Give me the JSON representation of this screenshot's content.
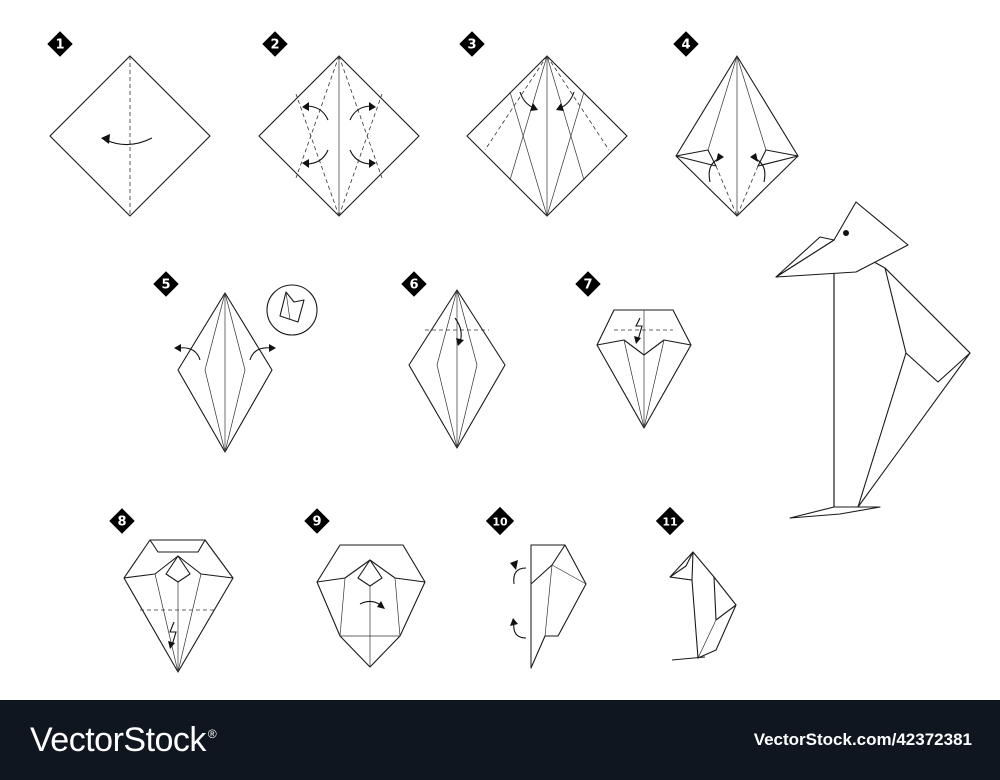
{
  "steps": [
    {
      "number": "1"
    },
    {
      "number": "2"
    },
    {
      "number": "3"
    },
    {
      "number": "4"
    },
    {
      "number": "5"
    },
    {
      "number": "6"
    },
    {
      "number": "7"
    },
    {
      "number": "8"
    },
    {
      "number": "9"
    },
    {
      "number": "10"
    },
    {
      "number": "11"
    }
  ],
  "footer": {
    "brand": "VectorStock",
    "registered_mark": "®",
    "image_id": "VectorStock.com/42372381"
  },
  "colors": {
    "line": "#1a1a1a",
    "badge": "#000000",
    "footer_background": "#0f1620",
    "footer_text": "#ffffff"
  }
}
